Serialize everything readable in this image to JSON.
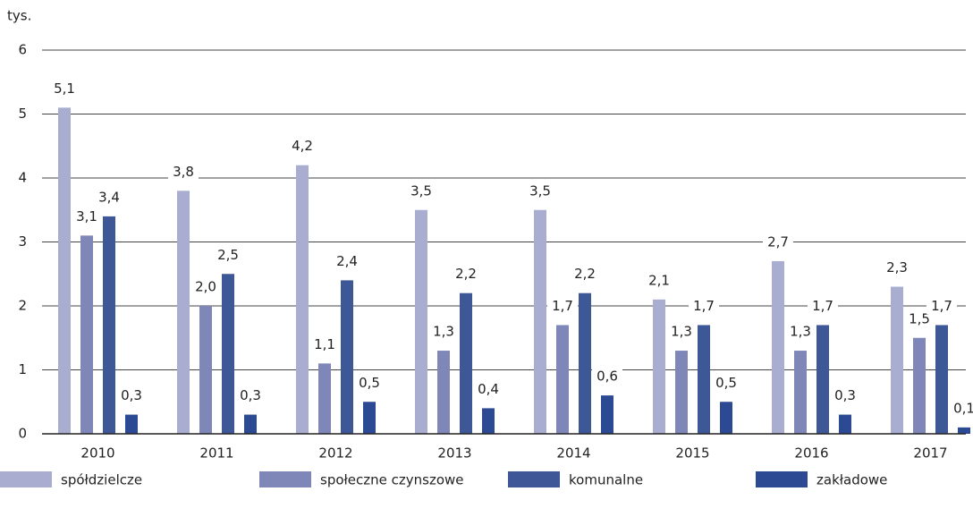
{
  "chart_data": {
    "type": "bar",
    "y_label": "tys.",
    "categories": [
      "2010",
      "2011",
      "2012",
      "2013",
      "2014",
      "2015",
      "2016",
      "2017"
    ],
    "series": [
      {
        "name": "spółdzielcze",
        "color": "#a9aed0",
        "values": [
          5.1,
          3.8,
          4.2,
          3.5,
          3.5,
          2.1,
          2.7,
          2.3
        ],
        "value_labels": [
          "5,1",
          "3,8",
          "4,2",
          "3,5",
          "3,5",
          "2,1",
          "2,7",
          "2,3"
        ]
      },
      {
        "name": "społeczne czynszowe",
        "color": "#7f87b8",
        "values": [
          3.1,
          2.0,
          1.1,
          1.3,
          1.7,
          1.3,
          1.3,
          1.5
        ],
        "value_labels": [
          "3,1",
          "2,0",
          "1,1",
          "1,3",
          "1,7",
          "1,3",
          "1,3",
          "1,5"
        ]
      },
      {
        "name": "komunalne",
        "color": "#3e5796",
        "values": [
          3.4,
          2.5,
          2.4,
          2.2,
          2.2,
          1.7,
          1.7,
          1.7
        ],
        "value_labels": [
          "3,4",
          "2,5",
          "2,4",
          "2,2",
          "2,2",
          "1,7",
          "1,7",
          "1,7"
        ]
      },
      {
        "name": "zakładowe",
        "color": "#2b4a93",
        "values": [
          0.3,
          0.3,
          0.5,
          0.4,
          0.6,
          0.5,
          0.3,
          0.1
        ],
        "value_labels": [
          "0,3",
          "0,3",
          "0,5",
          "0,4",
          "0,6",
          "0,5",
          "0,3",
          "0,1"
        ]
      }
    ],
    "ylim": [
      0,
      6
    ],
    "yticks": [
      0,
      1,
      2,
      3,
      4,
      5,
      6
    ],
    "grid": true
  }
}
